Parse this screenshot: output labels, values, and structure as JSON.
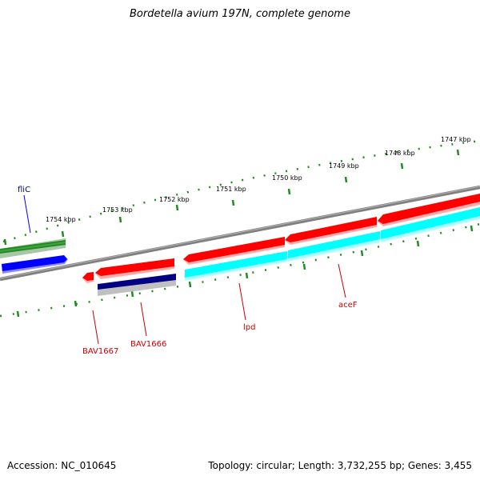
{
  "title": "Bordetella avium 197N, complete genome",
  "footer": {
    "accession": "Accession: NC_010645",
    "summary": "Topology: circular; Length: 3,732,255 bp; Genes: 3,455"
  },
  "ticks": {
    "k1747": "1747 kbp",
    "k1748": "1748 kbp",
    "k1749": "1749 kbp",
    "k1750": "1750 kbp",
    "k1751": "1751 kbp",
    "k1752": "1752 kbp",
    "k1753": "1753 kbp",
    "k1754": "1754 kbp"
  },
  "genes": {
    "fliC": "fliC",
    "BAV1667": "BAV1667",
    "BAV1666": "BAV1666",
    "lpd": "lpd",
    "aceF": "aceF"
  },
  "colors": {
    "forward_cds": "#ff0000",
    "reverse_cds": "#00ffff",
    "reverse_gene": "#0000ff",
    "navy_gene": "#000080",
    "green_gene": "#228b22",
    "backbone": "#808080",
    "tick": "#228b22"
  }
}
